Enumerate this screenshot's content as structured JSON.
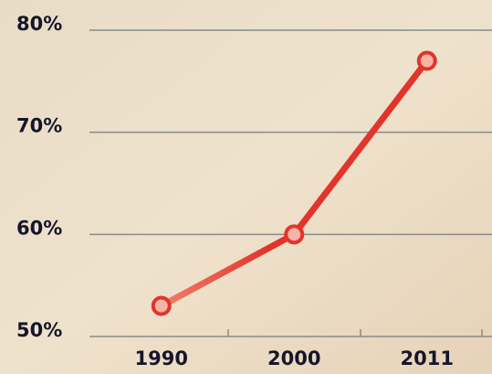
{
  "chart_data": {
    "type": "line",
    "categories": [
      "1990",
      "2000",
      "2011"
    ],
    "values": [
      53,
      60,
      77
    ],
    "color": "#e2342a",
    "ylim": [
      50,
      80
    ],
    "yticks": [
      {
        "value": 50,
        "label": "50%"
      },
      {
        "value": 60,
        "label": "60%"
      },
      {
        "value": 70,
        "label": "70%"
      },
      {
        "value": 80,
        "label": "80%"
      }
    ],
    "grid": true
  }
}
